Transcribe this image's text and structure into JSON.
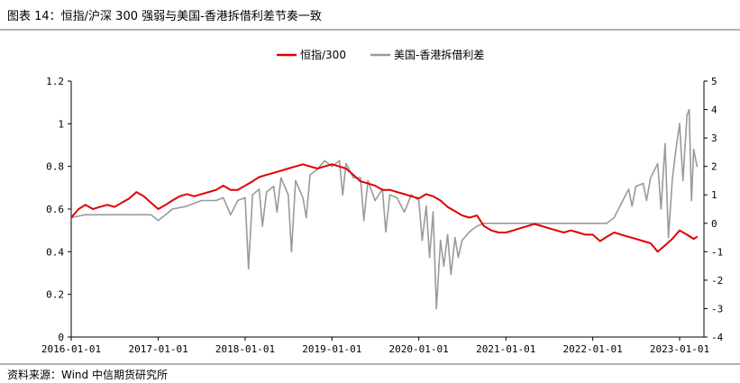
{
  "figure": {
    "title": "图表 14：恒指/沪深 300 强弱与美国-香港拆借利差节奏一致",
    "source": "资料来源：Wind  中信期货研究所"
  },
  "chart_data": {
    "type": "line",
    "x_ticks": [
      "2016-01-01",
      "2017-01-01",
      "2018-01-01",
      "2019-01-01",
      "2020-01-01",
      "2021-01-01",
      "2022-01-01",
      "2023-01-01"
    ],
    "x_range": [
      "2016-01-01",
      "2023-03-15"
    ],
    "y_left": {
      "range": [
        0,
        1.2
      ],
      "ticks": [
        "0",
        "0.2",
        "0.4",
        "0.6",
        "0.8",
        "1",
        "1.2"
      ]
    },
    "y_right": {
      "range": [
        -4,
        5
      ],
      "ticks": [
        "-4",
        "-3",
        "-2",
        "-1",
        "0",
        "1",
        "2",
        "3",
        "4",
        "5"
      ]
    },
    "legend_position": "top-center",
    "grid": false,
    "series": [
      {
        "name": "恒指/300",
        "axis": "left",
        "color": "#e00000",
        "points": [
          [
            "2016-01-01",
            0.56
          ],
          [
            "2016-02-01",
            0.6
          ],
          [
            "2016-03-01",
            0.62
          ],
          [
            "2016-04-01",
            0.6
          ],
          [
            "2016-05-01",
            0.61
          ],
          [
            "2016-06-01",
            0.62
          ],
          [
            "2016-07-01",
            0.61
          ],
          [
            "2016-08-01",
            0.63
          ],
          [
            "2016-09-01",
            0.65
          ],
          [
            "2016-10-01",
            0.68
          ],
          [
            "2016-11-01",
            0.66
          ],
          [
            "2016-12-01",
            0.63
          ],
          [
            "2017-01-01",
            0.6
          ],
          [
            "2017-02-01",
            0.62
          ],
          [
            "2017-03-01",
            0.64
          ],
          [
            "2017-04-01",
            0.66
          ],
          [
            "2017-05-01",
            0.67
          ],
          [
            "2017-06-01",
            0.66
          ],
          [
            "2017-07-01",
            0.67
          ],
          [
            "2017-08-01",
            0.68
          ],
          [
            "2017-09-01",
            0.69
          ],
          [
            "2017-10-01",
            0.71
          ],
          [
            "2017-11-01",
            0.69
          ],
          [
            "2017-12-01",
            0.69
          ],
          [
            "2018-01-01",
            0.71
          ],
          [
            "2018-02-01",
            0.73
          ],
          [
            "2018-03-01",
            0.75
          ],
          [
            "2018-04-01",
            0.76
          ],
          [
            "2018-05-01",
            0.77
          ],
          [
            "2018-06-01",
            0.78
          ],
          [
            "2018-07-01",
            0.79
          ],
          [
            "2018-08-01",
            0.8
          ],
          [
            "2018-09-01",
            0.81
          ],
          [
            "2018-10-01",
            0.8
          ],
          [
            "2018-11-01",
            0.79
          ],
          [
            "2018-12-01",
            0.8
          ],
          [
            "2019-01-01",
            0.81
          ],
          [
            "2019-02-01",
            0.8
          ],
          [
            "2019-03-01",
            0.79
          ],
          [
            "2019-04-01",
            0.76
          ],
          [
            "2019-05-01",
            0.73
          ],
          [
            "2019-06-01",
            0.72
          ],
          [
            "2019-07-01",
            0.71
          ],
          [
            "2019-08-01",
            0.69
          ],
          [
            "2019-09-01",
            0.69
          ],
          [
            "2019-10-01",
            0.68
          ],
          [
            "2019-11-01",
            0.67
          ],
          [
            "2019-12-01",
            0.66
          ],
          [
            "2020-01-01",
            0.65
          ],
          [
            "2020-02-01",
            0.67
          ],
          [
            "2020-03-01",
            0.66
          ],
          [
            "2020-04-01",
            0.64
          ],
          [
            "2020-05-01",
            0.61
          ],
          [
            "2020-06-01",
            0.59
          ],
          [
            "2020-07-01",
            0.57
          ],
          [
            "2020-08-01",
            0.56
          ],
          [
            "2020-09-01",
            0.57
          ],
          [
            "2020-10-01",
            0.52
          ],
          [
            "2020-11-01",
            0.5
          ],
          [
            "2020-12-01",
            0.49
          ],
          [
            "2021-01-01",
            0.49
          ],
          [
            "2021-02-01",
            0.5
          ],
          [
            "2021-03-01",
            0.51
          ],
          [
            "2021-04-01",
            0.52
          ],
          [
            "2021-05-01",
            0.53
          ],
          [
            "2021-06-01",
            0.52
          ],
          [
            "2021-07-01",
            0.51
          ],
          [
            "2021-08-01",
            0.5
          ],
          [
            "2021-09-01",
            0.49
          ],
          [
            "2021-10-01",
            0.5
          ],
          [
            "2021-11-01",
            0.49
          ],
          [
            "2021-12-01",
            0.48
          ],
          [
            "2022-01-01",
            0.48
          ],
          [
            "2022-02-01",
            0.45
          ],
          [
            "2022-03-01",
            0.47
          ],
          [
            "2022-04-01",
            0.49
          ],
          [
            "2022-05-01",
            0.48
          ],
          [
            "2022-06-01",
            0.47
          ],
          [
            "2022-07-01",
            0.46
          ],
          [
            "2022-08-01",
            0.45
          ],
          [
            "2022-09-01",
            0.44
          ],
          [
            "2022-10-01",
            0.4
          ],
          [
            "2022-11-01",
            0.43
          ],
          [
            "2022-12-01",
            0.46
          ],
          [
            "2023-01-01",
            0.5
          ],
          [
            "2023-02-01",
            0.48
          ],
          [
            "2023-03-01",
            0.46
          ],
          [
            "2023-03-15",
            0.47
          ]
        ]
      },
      {
        "name": "美国-香港拆借利差",
        "axis": "right",
        "color": "#9a9a9a",
        "points": [
          [
            "2016-01-01",
            0.2
          ],
          [
            "2016-03-01",
            0.3
          ],
          [
            "2016-06-01",
            0.3
          ],
          [
            "2016-09-01",
            0.3
          ],
          [
            "2016-12-01",
            0.3
          ],
          [
            "2017-01-01",
            0.1
          ],
          [
            "2017-02-01",
            0.3
          ],
          [
            "2017-03-01",
            0.5
          ],
          [
            "2017-05-01",
            0.6
          ],
          [
            "2017-07-01",
            0.8
          ],
          [
            "2017-09-01",
            0.8
          ],
          [
            "2017-10-01",
            0.9
          ],
          [
            "2017-11-01",
            0.3
          ],
          [
            "2017-12-01",
            0.8
          ],
          [
            "2018-01-01",
            0.9
          ],
          [
            "2018-01-15",
            -1.6
          ],
          [
            "2018-02-01",
            1.0
          ],
          [
            "2018-03-01",
            1.2
          ],
          [
            "2018-03-15",
            -0.1
          ],
          [
            "2018-04-01",
            1.1
          ],
          [
            "2018-05-01",
            1.3
          ],
          [
            "2018-05-15",
            0.4
          ],
          [
            "2018-06-01",
            1.6
          ],
          [
            "2018-07-01",
            1.0
          ],
          [
            "2018-07-15",
            -1.0
          ],
          [
            "2018-08-01",
            1.5
          ],
          [
            "2018-09-01",
            0.9
          ],
          [
            "2018-09-15",
            0.2
          ],
          [
            "2018-10-01",
            1.7
          ],
          [
            "2018-11-01",
            1.9
          ],
          [
            "2018-12-01",
            2.2
          ],
          [
            "2019-01-01",
            2.0
          ],
          [
            "2019-02-01",
            2.2
          ],
          [
            "2019-02-15",
            1.0
          ],
          [
            "2019-03-01",
            2.1
          ],
          [
            "2019-04-01",
            1.6
          ],
          [
            "2019-05-01",
            1.6
          ],
          [
            "2019-05-15",
            0.1
          ],
          [
            "2019-06-01",
            1.5
          ],
          [
            "2019-07-01",
            0.8
          ],
          [
            "2019-08-01",
            1.2
          ],
          [
            "2019-08-15",
            -0.3
          ],
          [
            "2019-09-01",
            1.0
          ],
          [
            "2019-10-01",
            0.9
          ],
          [
            "2019-11-01",
            0.4
          ],
          [
            "2019-12-01",
            1.0
          ],
          [
            "2020-01-01",
            0.8
          ],
          [
            "2020-01-15",
            -0.6
          ],
          [
            "2020-02-01",
            0.6
          ],
          [
            "2020-02-15",
            -1.2
          ],
          [
            "2020-03-01",
            0.4
          ],
          [
            "2020-03-15",
            -3.0
          ],
          [
            "2020-04-01",
            -0.6
          ],
          [
            "2020-04-15",
            -1.5
          ],
          [
            "2020-05-01",
            -0.4
          ],
          [
            "2020-05-15",
            -1.8
          ],
          [
            "2020-06-01",
            -0.5
          ],
          [
            "2020-06-15",
            -1.2
          ],
          [
            "2020-07-01",
            -0.6
          ],
          [
            "2020-08-01",
            -0.3
          ],
          [
            "2020-09-01",
            -0.1
          ],
          [
            "2020-10-01",
            0.0
          ],
          [
            "2020-12-01",
            0.0
          ],
          [
            "2021-03-01",
            0.0
          ],
          [
            "2021-06-01",
            0.0
          ],
          [
            "2021-09-01",
            0.0
          ],
          [
            "2021-12-01",
            0.0
          ],
          [
            "2022-03-01",
            0.0
          ],
          [
            "2022-04-01",
            0.2
          ],
          [
            "2022-05-01",
            0.7
          ],
          [
            "2022-06-01",
            1.2
          ],
          [
            "2022-06-15",
            0.6
          ],
          [
            "2022-07-01",
            1.3
          ],
          [
            "2022-08-01",
            1.4
          ],
          [
            "2022-08-15",
            0.8
          ],
          [
            "2022-09-01",
            1.6
          ],
          [
            "2022-10-01",
            2.1
          ],
          [
            "2022-10-15",
            0.5
          ],
          [
            "2022-11-01",
            2.8
          ],
          [
            "2022-11-15",
            -0.5
          ],
          [
            "2022-12-01",
            1.5
          ],
          [
            "2022-12-15",
            2.5
          ],
          [
            "2023-01-01",
            3.5
          ],
          [
            "2023-01-15",
            1.5
          ],
          [
            "2023-02-01",
            3.8
          ],
          [
            "2023-02-10",
            4.0
          ],
          [
            "2023-02-20",
            0.8
          ],
          [
            "2023-03-01",
            2.6
          ],
          [
            "2023-03-15",
            2.0
          ]
        ]
      }
    ]
  }
}
